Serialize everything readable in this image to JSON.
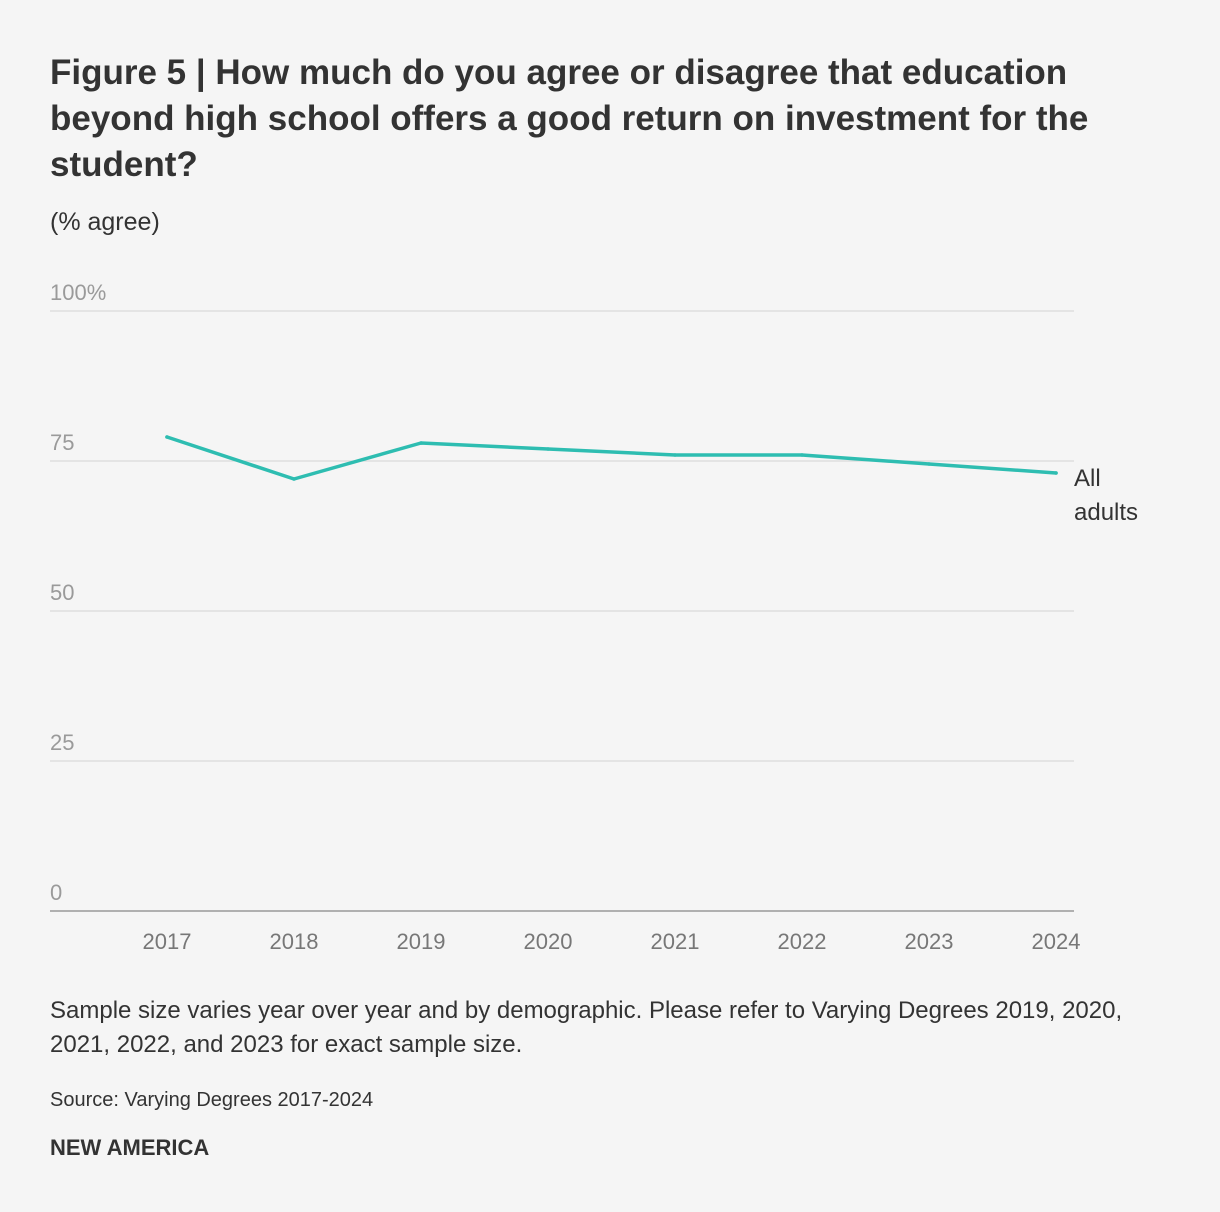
{
  "header": {
    "title": "Figure 5 | How much do you agree or disagree that education beyond high school offers a good return on investment for the student?",
    "subtitle": "(% agree)"
  },
  "footer": {
    "note": "Sample size varies year over year and by demographic. Please refer to Varying Degrees 2019, 2020, 2021, 2022, and 2023 for exact sample size.",
    "source": "Source: Varying Degrees 2017-2024",
    "brand": "NEW AMERICA"
  },
  "chart_data": {
    "type": "line",
    "title": "Figure 5 | How much do you agree or disagree that education beyond high school offers a good return on investment for the student?",
    "subtitle": "(% agree)",
    "xlabel": "",
    "ylabel": "(% agree)",
    "ylim": [
      0,
      100
    ],
    "yticks": [
      0,
      25,
      50,
      75,
      100
    ],
    "ytick_labels": [
      "0",
      "25",
      "50",
      "75",
      "100%"
    ],
    "categories": [
      "2017",
      "2018",
      "2019",
      "2020",
      "2021",
      "2022",
      "2023",
      "2024"
    ],
    "grid": true,
    "series": [
      {
        "name": "All adults",
        "label_lines": [
          "All",
          "adults"
        ],
        "color": "#2ebdb1",
        "values": [
          79,
          72,
          78,
          77,
          76,
          76,
          74.5,
          73
        ]
      }
    ]
  }
}
